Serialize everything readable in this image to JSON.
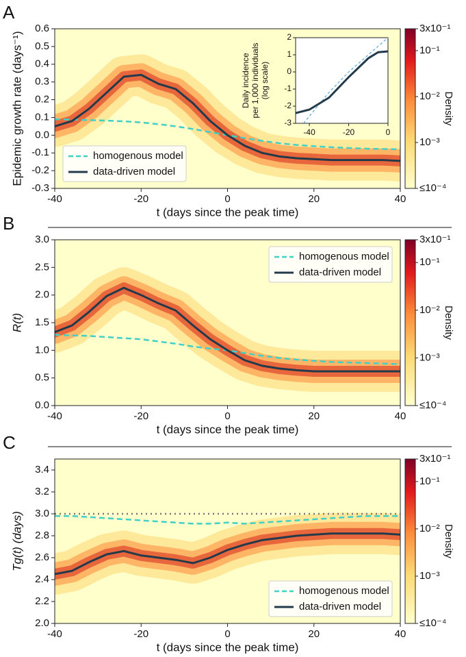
{
  "chart_data": [
    {
      "type": "line",
      "label": "A",
      "ylabel": "Epidemic growth rate (days⁻¹)",
      "xlabel": "t (days since the peak time)",
      "xlim": [
        -40,
        40
      ],
      "xticks": [
        -40,
        -20,
        0,
        20,
        40
      ],
      "ylim": [
        -0.3,
        0.6
      ],
      "yticks": [
        -0.3,
        -0.2,
        -0.1,
        {
          "value": 0,
          "label": "0.0"
        },
        0.1,
        0.2,
        0.3,
        0.4,
        0.5,
        0.6
      ],
      "legend": "lower left",
      "x": [
        -40,
        -36,
        -32,
        -28,
        -24,
        -20,
        -16,
        -12,
        -8,
        -4,
        0,
        4,
        8,
        12,
        16,
        20,
        24,
        28,
        32,
        36,
        40
      ],
      "series": [
        {
          "name": "homogenous model",
          "color": "#40d0c8",
          "dash": true,
          "values": [
            0.09,
            0.088,
            0.085,
            0.082,
            0.078,
            0.072,
            0.062,
            0.05,
            0.035,
            0.017,
            0.0,
            -0.017,
            -0.032,
            -0.045,
            -0.055,
            -0.062,
            -0.068,
            -0.072,
            -0.076,
            -0.078,
            -0.08
          ]
        },
        {
          "name": "data-driven model",
          "color": "#223a4a",
          "dash": false,
          "values": [
            0.05,
            0.08,
            0.15,
            0.24,
            0.33,
            0.34,
            0.29,
            0.26,
            0.18,
            0.08,
            0.0,
            -0.06,
            -0.1,
            -0.12,
            -0.13,
            -0.135,
            -0.14,
            -0.14,
            -0.14,
            -0.14,
            -0.145
          ]
        }
      ],
      "colorbar": {
        "label": "Density",
        "lim": [
          0.0001,
          0.3
        ],
        "ticks": [
          {
            "value": 0.3,
            "label": "3x10⁻¹"
          },
          {
            "value": 0.1,
            "label": "10⁻¹"
          },
          {
            "value": 0.01,
            "label": "10⁻²"
          },
          {
            "value": 0.001,
            "label": "10⁻³"
          },
          {
            "value": 0.0001,
            "label": "≤10⁻⁴"
          }
        ]
      },
      "inset": {
        "ylabel": [
          "Daily incidence",
          "per 1,000 individuals",
          "(log scale)"
        ],
        "xlim": [
          -47,
          0
        ],
        "xticks": [
          -40,
          -20,
          0
        ],
        "ylim": [
          -3,
          2
        ],
        "yticks": [
          -3,
          -2,
          -1,
          0,
          1,
          2
        ],
        "series": [
          {
            "color": "#5aa8e0",
            "dash": true,
            "x": [
              -43,
              -30,
              -20,
              -10,
              0
            ],
            "values": [
              -3,
              -1.2,
              0.0,
              1.0,
              2.0
            ]
          },
          {
            "color": "#223a4a",
            "dash": false,
            "x": [
              -47,
              -40,
              -30,
              -20,
              -10,
              -5,
              0
            ],
            "values": [
              -2.4,
              -2.2,
              -1.5,
              -0.3,
              0.8,
              1.15,
              1.2
            ]
          }
        ]
      }
    },
    {
      "type": "line",
      "label": "B",
      "ylabel": "R(t)",
      "xlabel": "t (days since the peak time)",
      "xlim": [
        -40,
        40
      ],
      "xticks": [
        -40,
        -20,
        0,
        20,
        40
      ],
      "ylim": [
        0,
        3
      ],
      "yticks": [
        {
          "value": 0,
          "label": "0.0"
        },
        0.5,
        {
          "value": 1,
          "label": "1.0"
        },
        1.5,
        {
          "value": 2,
          "label": "2.0"
        },
        2.5,
        {
          "value": 3,
          "label": "3.0"
        }
      ],
      "legend": "upper right",
      "x": [
        -40,
        -36,
        -32,
        -28,
        -24,
        -20,
        -16,
        -12,
        -8,
        -4,
        0,
        4,
        8,
        12,
        16,
        20,
        24,
        28,
        32,
        36,
        40
      ],
      "series": [
        {
          "name": "homogenous model",
          "color": "#40d0c8",
          "dash": true,
          "values": [
            1.28,
            1.27,
            1.26,
            1.24,
            1.22,
            1.2,
            1.16,
            1.12,
            1.07,
            1.03,
            1.0,
            0.95,
            0.9,
            0.86,
            0.83,
            0.81,
            0.79,
            0.78,
            0.77,
            0.76,
            0.75
          ]
        },
        {
          "name": "data-driven model",
          "color": "#223a4a",
          "dash": false,
          "values": [
            1.33,
            1.45,
            1.7,
            1.98,
            2.13,
            2.0,
            1.85,
            1.72,
            1.45,
            1.2,
            1.0,
            0.82,
            0.72,
            0.67,
            0.64,
            0.62,
            0.62,
            0.62,
            0.62,
            0.62,
            0.62
          ]
        }
      ],
      "colorbar": {
        "label": "Density",
        "lim": [
          0.0001,
          0.3
        ],
        "ticks": [
          {
            "value": 0.3,
            "label": "3x10⁻¹"
          },
          {
            "value": 0.1,
            "label": "10⁻¹"
          },
          {
            "value": 0.01,
            "label": "10⁻²"
          },
          {
            "value": 0.001,
            "label": "10⁻³"
          },
          {
            "value": 0.0001,
            "label": "≤10⁻⁴"
          }
        ]
      }
    },
    {
      "type": "line",
      "label": "C",
      "ylabel": "Tg(t) (days)",
      "xlabel": "t (days since the peak time)",
      "xlim": [
        -40,
        40
      ],
      "xticks": [
        -40,
        -20,
        0,
        20,
        40
      ],
      "ylim": [
        2,
        3.5
      ],
      "yticks": [
        {
          "value": 2,
          "label": "2.0"
        },
        2.2,
        2.4,
        2.6,
        2.8,
        {
          "value": 3,
          "label": "3.0"
        },
        3.2,
        3.4
      ],
      "legend": "lower right",
      "hline": 3,
      "x": [
        -40,
        -36,
        -32,
        -28,
        -24,
        -20,
        -16,
        -12,
        -8,
        -4,
        0,
        4,
        8,
        12,
        16,
        20,
        24,
        28,
        32,
        36,
        40
      ],
      "series": [
        {
          "name": "homogenous model",
          "color": "#40d0c8",
          "dash": true,
          "values": [
            2.98,
            2.98,
            2.97,
            2.96,
            2.95,
            2.94,
            2.93,
            2.92,
            2.91,
            2.91,
            2.92,
            2.91,
            2.92,
            2.93,
            2.94,
            2.95,
            2.96,
            2.97,
            2.98,
            2.98,
            2.98
          ]
        },
        {
          "name": "data-driven model",
          "color": "#223a4a",
          "dash": false,
          "values": [
            2.45,
            2.48,
            2.56,
            2.63,
            2.66,
            2.62,
            2.6,
            2.58,
            2.55,
            2.6,
            2.67,
            2.72,
            2.76,
            2.78,
            2.8,
            2.81,
            2.82,
            2.82,
            2.82,
            2.82,
            2.81
          ]
        }
      ],
      "colorbar": {
        "label": "Density",
        "lim": [
          0.0001,
          0.3
        ],
        "ticks": [
          {
            "value": 0.3,
            "label": "3x10⁻¹"
          },
          {
            "value": 0.1,
            "label": "10⁻¹"
          },
          {
            "value": 0.01,
            "label": "10⁻²"
          },
          {
            "value": 0.001,
            "label": "10⁻³"
          },
          {
            "value": 0.0001,
            "label": "≤10⁻⁴"
          }
        ]
      }
    }
  ]
}
